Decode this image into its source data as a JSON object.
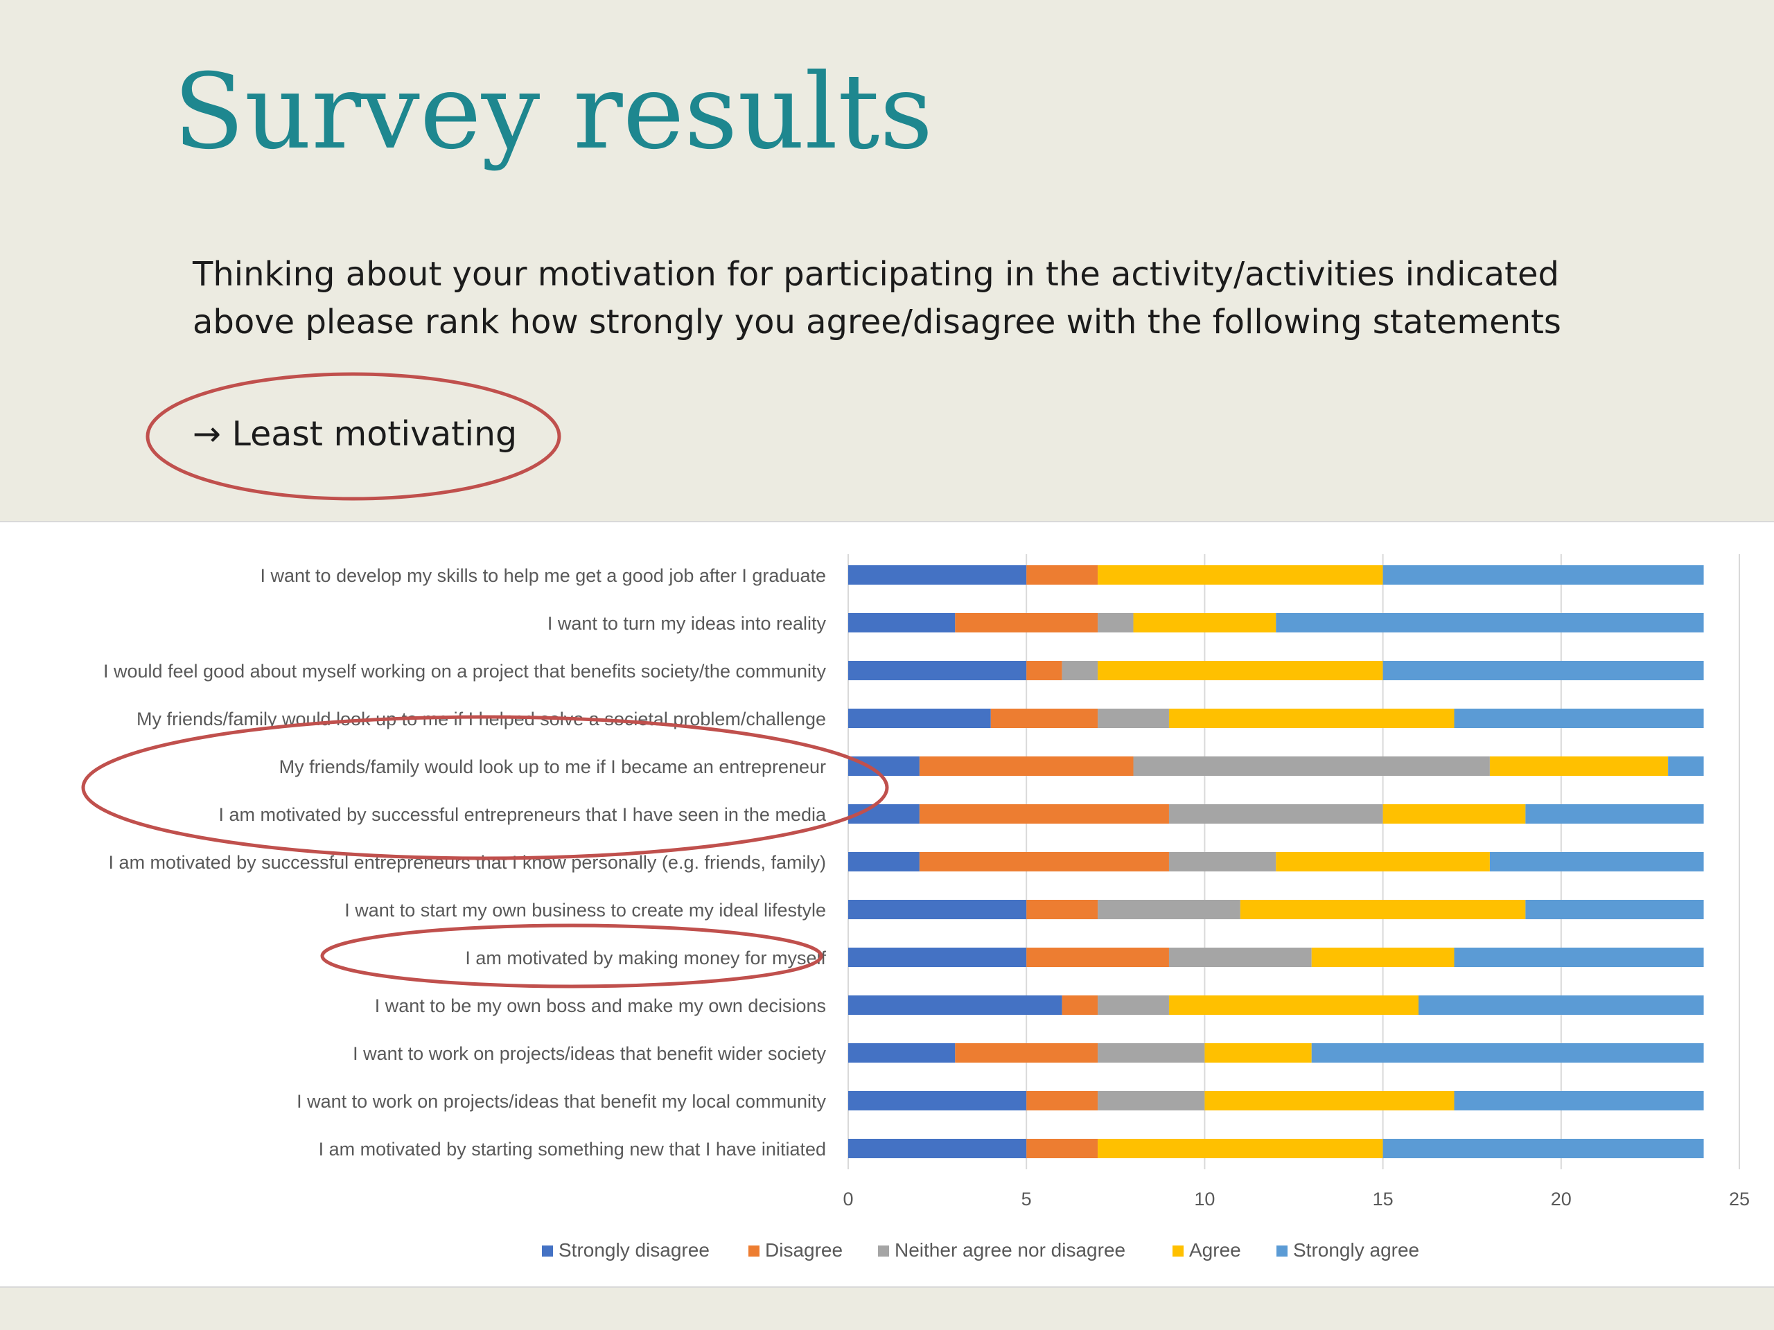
{
  "slide": {
    "title": "Survey results",
    "question_line1": "Thinking about your motivation for participating in the activity/activities indicated",
    "question_line2": "above please rank how strongly you agree/disagree with the following statements",
    "callout": "→ Least motivating",
    "callout_color": "#c0504d"
  },
  "chart_data": {
    "type": "bar",
    "orientation": "horizontal",
    "stacked": true,
    "xlim": [
      0,
      25
    ],
    "x_ticks": [
      0,
      5,
      10,
      15,
      20,
      25
    ],
    "grid": true,
    "legend_position": "bottom",
    "categories": [
      "I want to develop my skills to help me get a good job after I graduate",
      "I want to turn my ideas into reality",
      "I would feel good about myself working on a project that benefits society/the community",
      "My friends/family would look up to me if I helped solve a societal problem/challenge",
      "My friends/family would look up to me if I became an entrepreneur",
      "I am motivated by successful entrepreneurs that I have seen in the media",
      "I am motivated by successful entrepreneurs that I know personally (e.g. friends, family)",
      "I want to start my own business to create my ideal lifestyle",
      "I am motivated by making money for myself",
      "I want to be my own boss and make my own decisions",
      "I want to work on projects/ideas that benefit wider society",
      "I want to work on projects/ideas that benefit my local community",
      "I am motivated by starting something new that I have initiated"
    ],
    "series": [
      {
        "name": "Strongly disagree",
        "color": "#4472c4",
        "values": [
          5,
          3,
          5,
          4,
          2,
          2,
          2,
          5,
          5,
          6,
          3,
          5,
          5
        ]
      },
      {
        "name": "Disagree",
        "color": "#ed7d31",
        "values": [
          2,
          4,
          1,
          3,
          6,
          7,
          7,
          2,
          4,
          1,
          4,
          2,
          2
        ]
      },
      {
        "name": "Neither agree nor disagree",
        "color": "#a5a5a5",
        "values": [
          0,
          1,
          1,
          2,
          10,
          6,
          3,
          4,
          4,
          2,
          3,
          3,
          0
        ]
      },
      {
        "name": "Agree",
        "color": "#ffc000",
        "values": [
          8,
          4,
          8,
          8,
          5,
          4,
          6,
          8,
          4,
          7,
          3,
          7,
          8
        ]
      },
      {
        "name": "Strongly agree",
        "color": "#5b9bd5",
        "values": [
          9,
          12,
          9,
          7,
          1,
          5,
          6,
          5,
          7,
          8,
          11,
          7,
          9
        ]
      }
    ],
    "highlighted_categories": [
      "My friends/family would look up to me if I became an entrepreneur",
      "I am motivated by successful entrepreneurs that I have seen in the media",
      "I am motivated by making money for myself"
    ]
  }
}
